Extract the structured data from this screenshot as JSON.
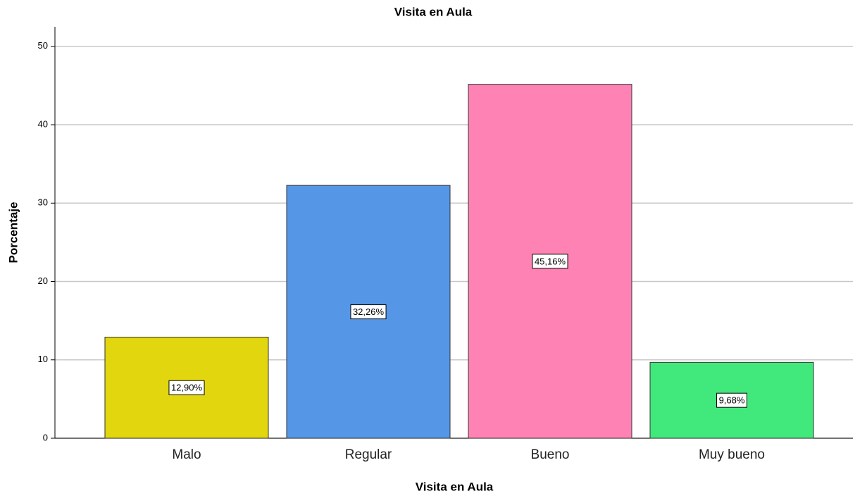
{
  "chart_data": {
    "type": "bar",
    "title": "Visita en Aula",
    "x_label": "Visita en Aula",
    "y_label": "Porcentaje",
    "categories": [
      "Malo",
      "Regular",
      "Bueno",
      "Muy bueno"
    ],
    "values": [
      12.9,
      32.26,
      45.16,
      9.68
    ],
    "value_labels": [
      "12,90%",
      "32,26%",
      "45,16%",
      "9,68%"
    ],
    "colors": [
      "#e2d70e",
      "#5596e6",
      "#ff82b4",
      "#41e87c"
    ],
    "ylim": [
      0,
      52.5
    ],
    "yticks": [
      0,
      10,
      20,
      30,
      40,
      50
    ],
    "grid": true
  }
}
